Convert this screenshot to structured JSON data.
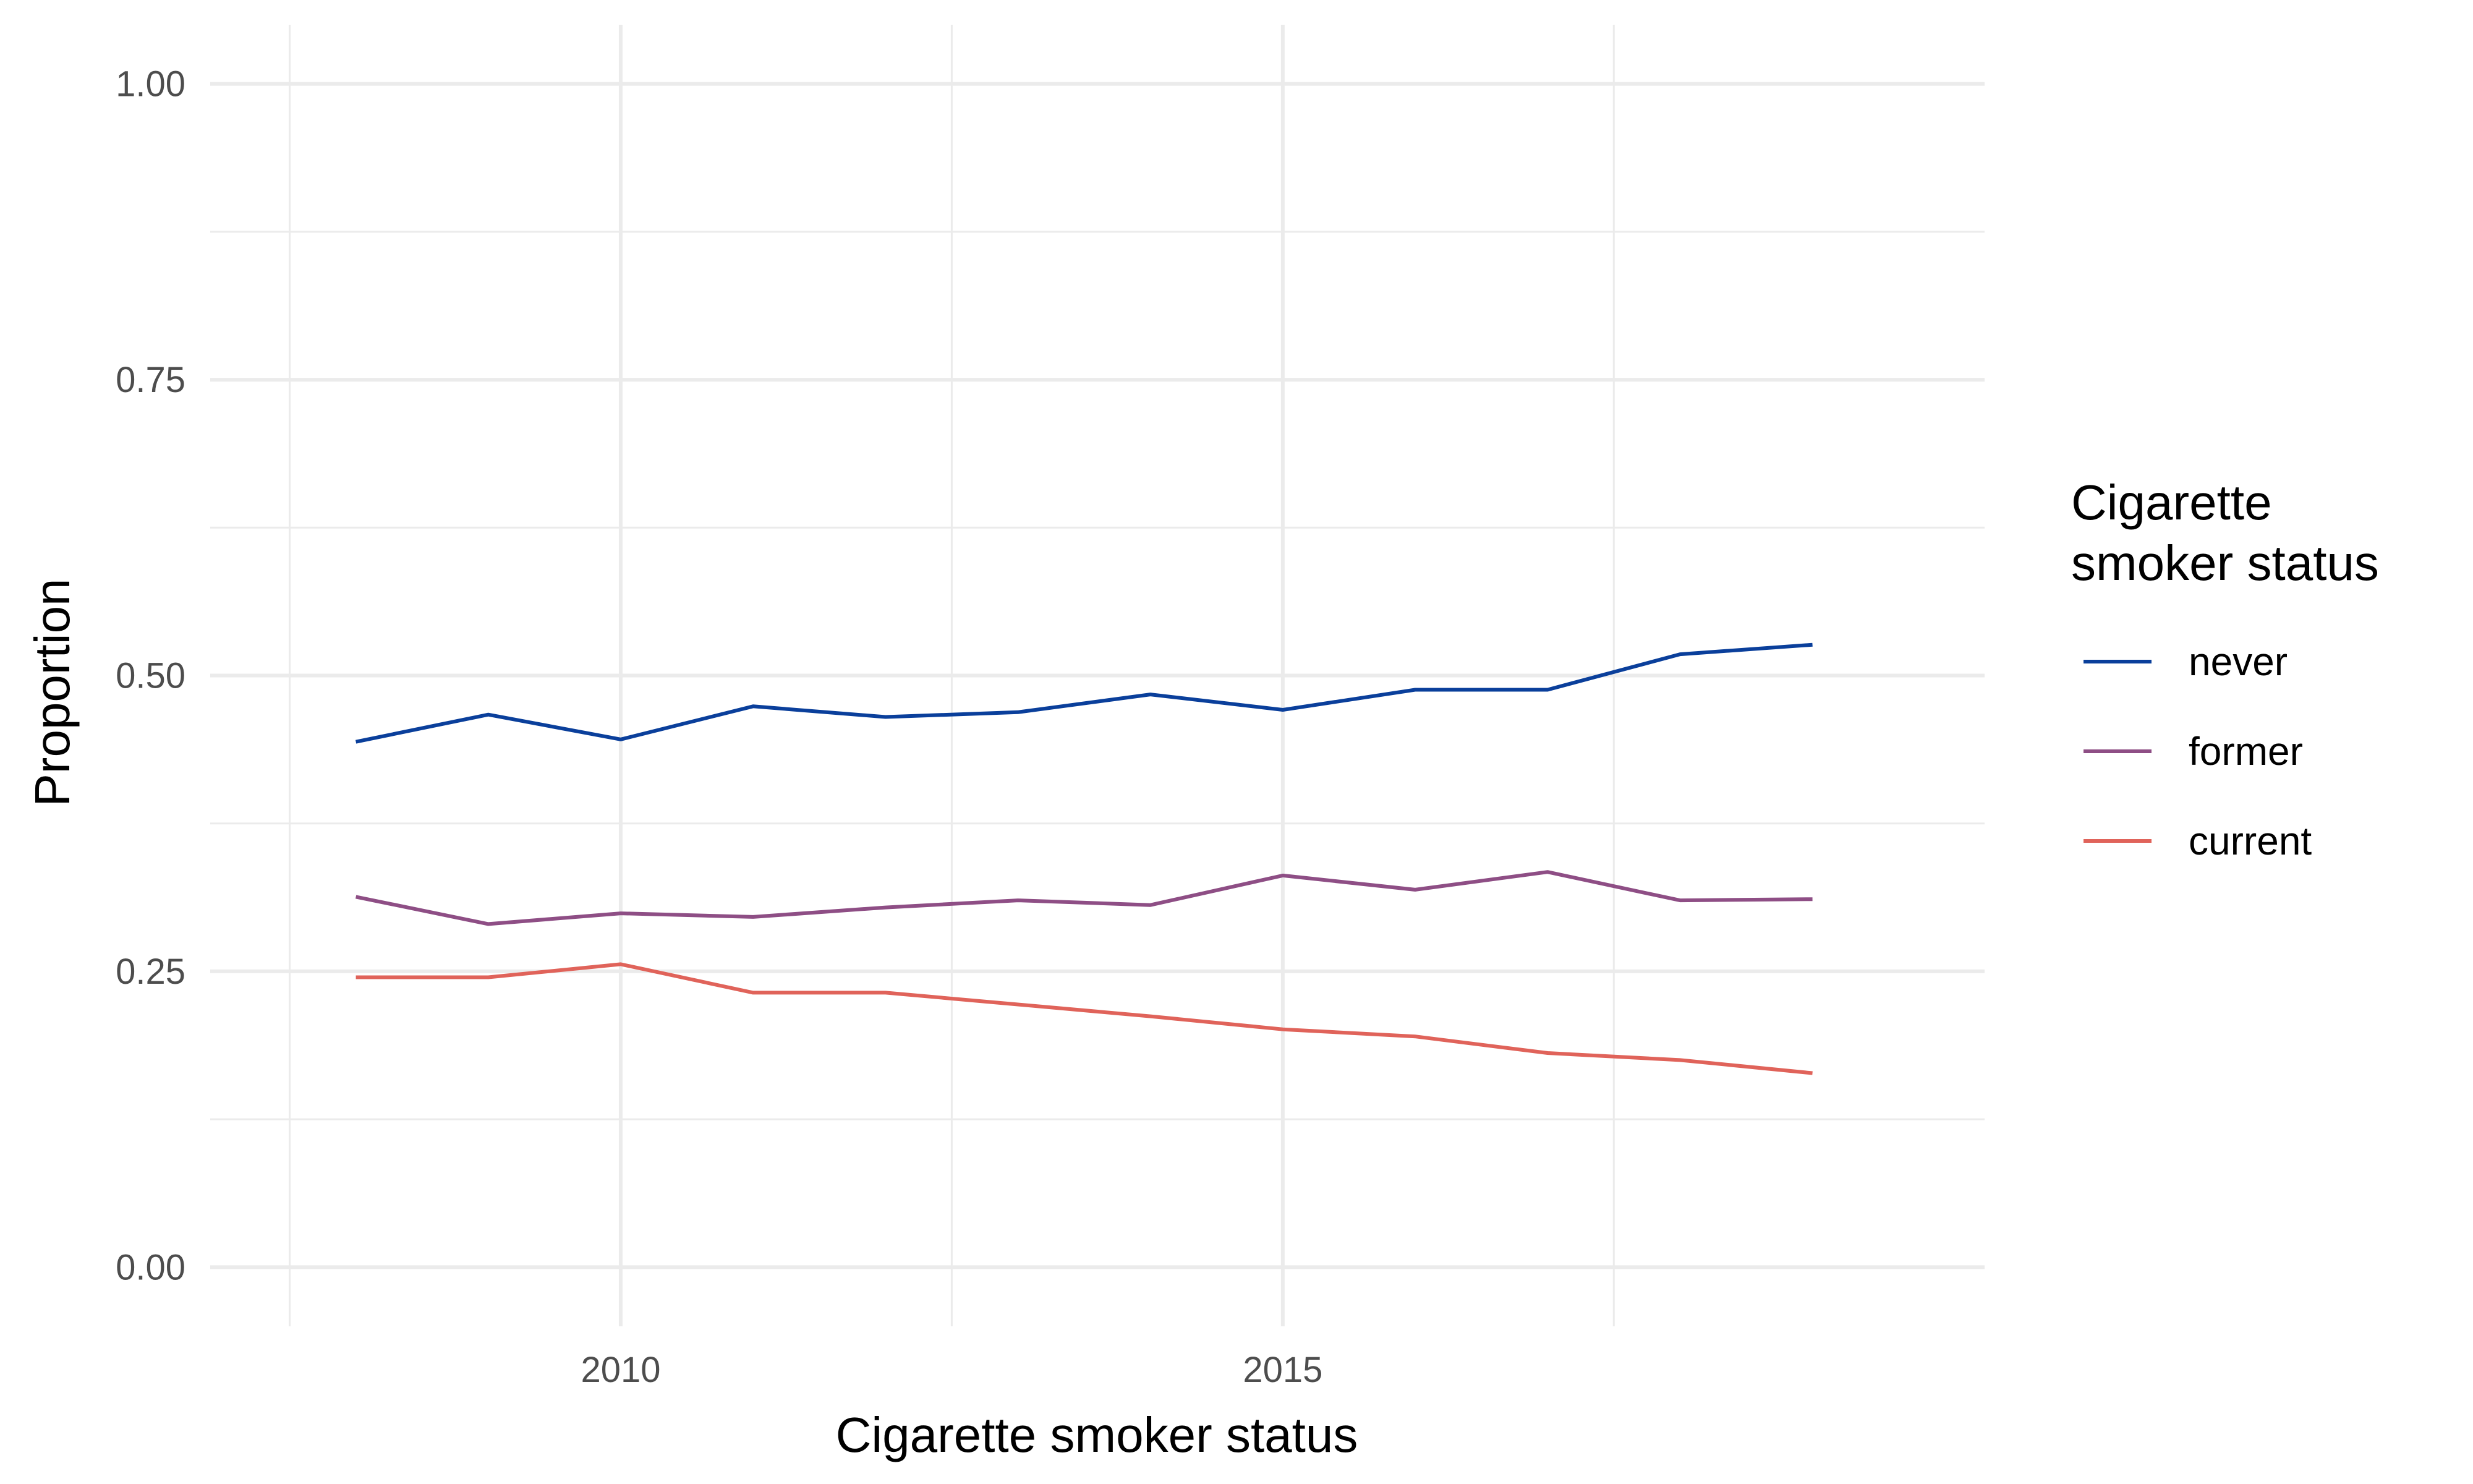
{
  "chart_data": {
    "type": "line",
    "title": "",
    "xlabel": "Cigarette smoker status",
    "ylabel": "Proportion",
    "x": [
      2008,
      2009,
      2010,
      2011,
      2012,
      2013,
      2014,
      2015,
      2016,
      2017,
      2018,
      2019
    ],
    "xlim": [
      2006.9,
      2020.3
    ],
    "ylim": [
      -0.05,
      1.05
    ],
    "x_ticks": [
      2010,
      2015
    ],
    "x_tick_labels": [
      "2010",
      "2015"
    ],
    "x_minor_ticks": [
      2007.5,
      2012.5,
      2017.5
    ],
    "y_ticks": [
      0,
      0.25,
      0.5,
      0.75,
      1.0
    ],
    "y_tick_labels": [
      "0.00",
      "0.25",
      "0.50",
      "0.75",
      "1.00"
    ],
    "y_minor_ticks": [
      0.125,
      0.375,
      0.625,
      0.875
    ],
    "grid": true,
    "legend": {
      "title_lines": [
        "Cigarette",
        "smoker status"
      ],
      "placement": "right"
    },
    "series": [
      {
        "name": "never",
        "color": "#0a3f9b",
        "values": [
          0.444,
          0.467,
          0.446,
          0.474,
          0.465,
          0.469,
          0.484,
          0.471,
          0.488,
          0.488,
          0.518,
          0.526
        ]
      },
      {
        "name": "former",
        "color": "#8e4e85",
        "values": [
          0.313,
          0.29,
          0.299,
          0.296,
          0.304,
          0.31,
          0.306,
          0.331,
          0.319,
          0.334,
          0.31,
          0.311
        ]
      },
      {
        "name": "current",
        "color": "#e0635a",
        "values": [
          0.245,
          0.245,
          0.256,
          0.232,
          0.232,
          0.222,
          0.212,
          0.201,
          0.195,
          0.181,
          0.175,
          0.164
        ]
      }
    ]
  }
}
